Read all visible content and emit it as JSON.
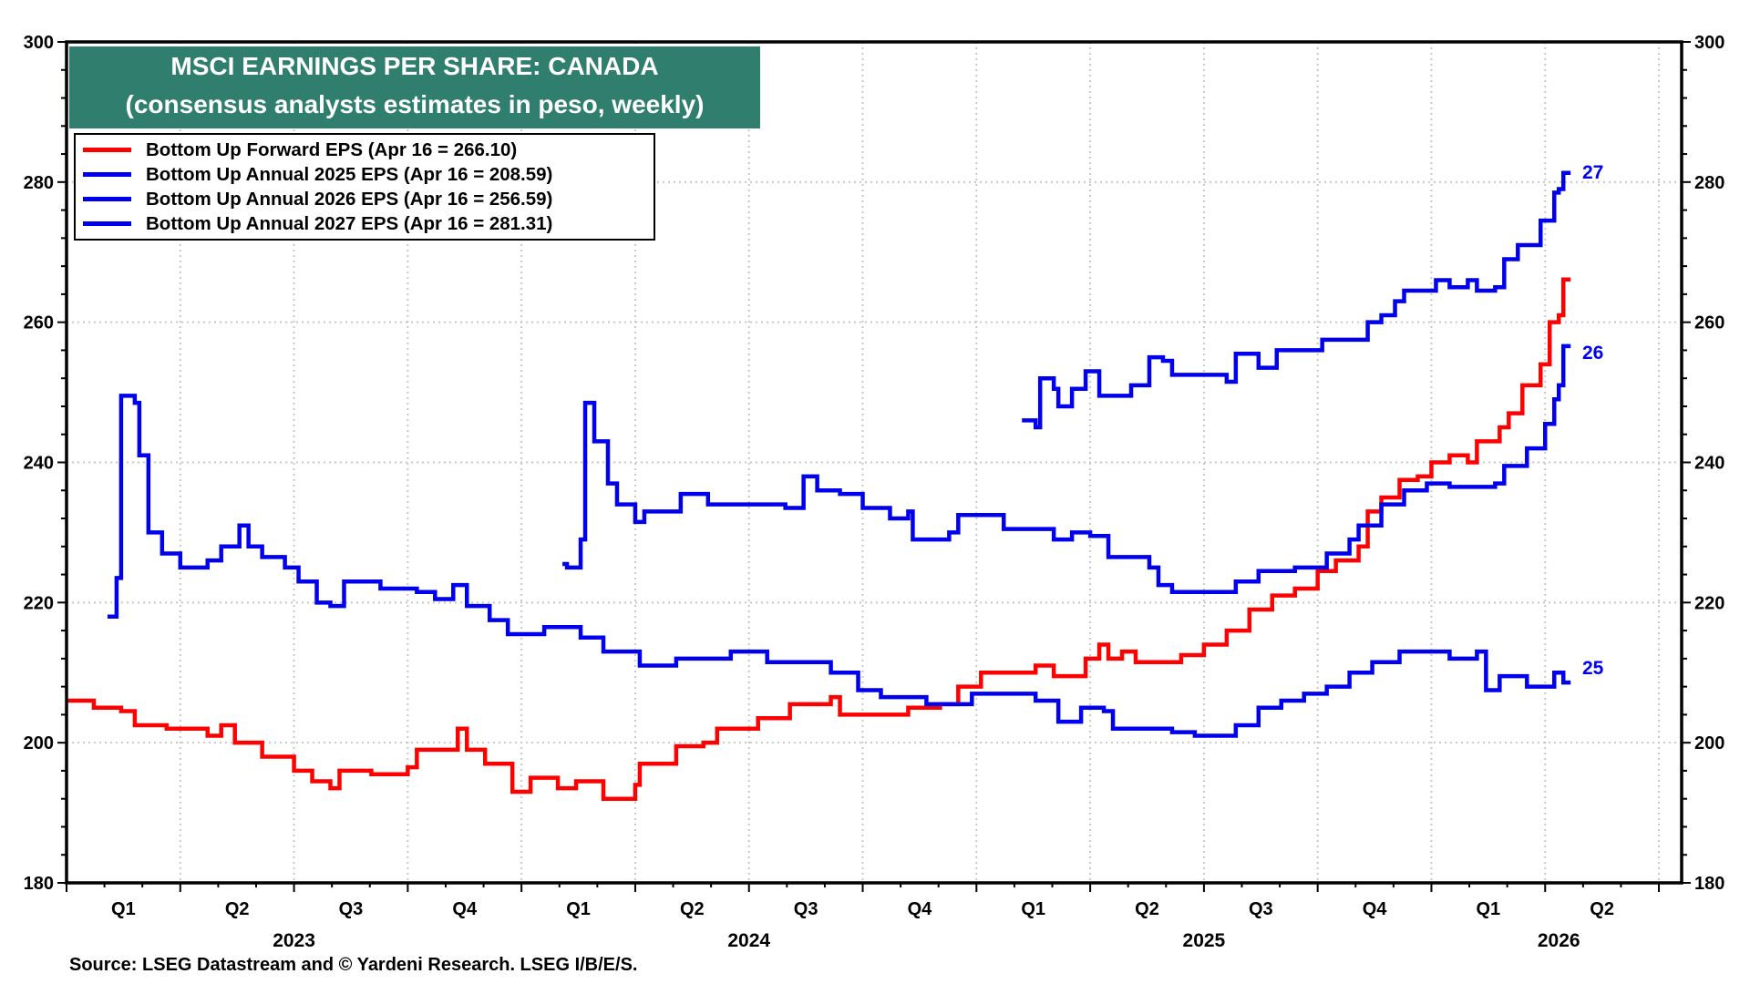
{
  "chart_data": {
    "type": "line",
    "title": "MSCI EARNINGS PER SHARE: CANADA",
    "subtitle": "(consensus analysts estimates in peso, weekly)",
    "source": "Source: LSEG Datastream and © Yardeni Research. LSEG I/B/E/S.",
    "ylim": [
      180,
      300
    ],
    "yticks": [
      180,
      200,
      220,
      240,
      260,
      280,
      300
    ],
    "xlim": [
      2023.0,
      2026.55
    ],
    "x_quarter_labels": [
      "Q1",
      "Q2",
      "Q3",
      "Q4"
    ],
    "x_year_labels": [
      "2023",
      "2024",
      "2025",
      "2026"
    ],
    "grid": true,
    "legend_position": "top-left",
    "step": true,
    "series": [
      {
        "name": "Bottom Up Forward EPS (Apr 16 = 266.10)",
        "color": "#ff0000",
        "end_label": "",
        "x": [
          2023.0,
          2023.06,
          2023.12,
          2023.15,
          2023.22,
          2023.31,
          2023.34,
          2023.37,
          2023.43,
          2023.5,
          2023.54,
          2023.58,
          2023.6,
          2023.67,
          2023.75,
          2023.77,
          2023.82,
          2023.86,
          2023.88,
          2023.92,
          2023.98,
          2024.02,
          2024.05,
          2024.08,
          2024.12,
          2024.18,
          2024.25,
          2024.26,
          2024.34,
          2024.4,
          2024.43,
          2024.48,
          2024.52,
          2024.59,
          2024.68,
          2024.7,
          2024.8,
          2024.85,
          2024.92,
          2024.96,
          2025.01,
          2025.1,
          2025.13,
          2025.17,
          2025.24,
          2025.27,
          2025.29,
          2025.32,
          2025.35,
          2025.45,
          2025.5,
          2025.55,
          2025.6,
          2025.65,
          2025.7,
          2025.75,
          2025.79,
          2025.84,
          2025.86,
          2025.89,
          2025.93,
          2025.97,
          2026.0,
          2026.04,
          2026.08,
          2026.1,
          2026.15,
          2026.17,
          2026.2,
          2026.24,
          2026.26,
          2026.28,
          2026.29
        ],
        "y": [
          206,
          205,
          204.5,
          202.5,
          202,
          201,
          202.5,
          200,
          198,
          196,
          194.5,
          193.5,
          196,
          195.5,
          196.5,
          199,
          199,
          202,
          199,
          197,
          193,
          195,
          195,
          193.5,
          194.5,
          192,
          194,
          197,
          199.5,
          200,
          202,
          202,
          203.5,
          205.5,
          206.5,
          204,
          204,
          205,
          205.5,
          208,
          210,
          210,
          211,
          209.5,
          212,
          214,
          212,
          213,
          211.5,
          212.5,
          214,
          216,
          219,
          221,
          222,
          224.5,
          226,
          228,
          233,
          235,
          237.5,
          238,
          240,
          241,
          240,
          243,
          245,
          247,
          251,
          254,
          260,
          261,
          266.1
        ]
      },
      {
        "name": "Bottom Up Annual 2025 EPS (Apr 16 = 208.59)",
        "color": "#0000ee",
        "end_label": "25",
        "x": [
          2023.09,
          2023.11,
          2023.12,
          2023.15,
          2023.16,
          2023.18,
          2023.21,
          2023.25,
          2023.31,
          2023.34,
          2023.38,
          2023.4,
          2023.43,
          2023.48,
          2023.51,
          2023.55,
          2023.58,
          2023.61,
          2023.69,
          2023.77,
          2023.81,
          2023.85,
          2023.88,
          2023.93,
          2023.97,
          2024.05,
          2024.13,
          2024.18,
          2024.26,
          2024.34,
          2024.46,
          2024.54,
          2024.64,
          2024.68,
          2024.74,
          2024.79,
          2024.89,
          2024.99,
          2025.13,
          2025.18,
          2025.23,
          2025.28,
          2025.3,
          2025.43,
          2025.48,
          2025.57,
          2025.62,
          2025.67,
          2025.72,
          2025.77,
          2025.82,
          2025.87,
          2025.93,
          2026.04,
          2026.1,
          2026.12,
          2026.15,
          2026.19,
          2026.21,
          2026.27,
          2026.29
        ],
        "y": [
          218,
          223.5,
          249.5,
          248.5,
          241,
          230,
          227,
          225,
          226,
          228,
          231,
          228,
          226.5,
          225,
          223,
          220,
          219.5,
          223,
          222,
          221.5,
          220.5,
          222.5,
          219.5,
          217.5,
          215.5,
          216.5,
          215,
          213,
          211,
          212,
          213,
          211.5,
          211.5,
          210,
          207.5,
          206.5,
          205.5,
          207,
          206,
          203,
          205,
          204.5,
          202,
          201.5,
          201,
          202.5,
          205,
          206,
          207,
          208,
          210,
          211.5,
          213,
          212,
          213,
          207.5,
          209.5,
          209.5,
          208,
          210,
          208.59
        ]
      },
      {
        "name": "Bottom Up Annual 2026 EPS (Apr 16 = 256.59)",
        "color": "#0000ee",
        "end_label": "26",
        "x": [
          2024.09,
          2024.1,
          2024.13,
          2024.14,
          2024.16,
          2024.19,
          2024.21,
          2024.25,
          2024.27,
          2024.35,
          2024.41,
          2024.58,
          2024.62,
          2024.65,
          2024.7,
          2024.75,
          2024.81,
          2024.85,
          2024.86,
          2024.94,
          2024.96,
          2025.06,
          2025.17,
          2025.21,
          2025.25,
          2025.29,
          2025.38,
          2025.4,
          2025.43,
          2025.52,
          2025.57,
          2025.62,
          2025.7,
          2025.77,
          2025.82,
          2025.84,
          2025.89,
          2025.94,
          2025.99,
          2026.04,
          2026.14,
          2026.16,
          2026.21,
          2026.25,
          2026.27,
          2026.28,
          2026.29
        ],
        "y": [
          225.5,
          225,
          229,
          248.5,
          243,
          237,
          234,
          231.5,
          233,
          235.5,
          234,
          233.5,
          238,
          236,
          235.5,
          233.5,
          232,
          233,
          229,
          230,
          232.5,
          230.5,
          229,
          230,
          229.5,
          226.5,
          225,
          222.5,
          221.5,
          221.5,
          223,
          224.5,
          225,
          227,
          229,
          231,
          234,
          236,
          237,
          236.5,
          237,
          239.5,
          242,
          245.5,
          249,
          251,
          256.59
        ]
      },
      {
        "name": "Bottom Up Annual 2027 EPS (Apr 16 = 281.31)",
        "color": "#0000ee",
        "end_label": "27",
        "x": [
          2025.1,
          2025.13,
          2025.14,
          2025.17,
          2025.18,
          2025.21,
          2025.24,
          2025.27,
          2025.34,
          2025.38,
          2025.41,
          2025.43,
          2025.52,
          2025.55,
          2025.57,
          2025.62,
          2025.66,
          2025.76,
          2025.83,
          2025.86,
          2025.89,
          2025.92,
          2025.94,
          2026.01,
          2026.04,
          2026.08,
          2026.1,
          2026.14,
          2026.16,
          2026.19,
          2026.24,
          2026.27,
          2026.28,
          2026.29
        ],
        "y": [
          246,
          245,
          252,
          250.5,
          248,
          250.5,
          253,
          249.5,
          251,
          255,
          254.5,
          252.5,
          252.5,
          251.5,
          255.5,
          253.5,
          256,
          257.5,
          257.5,
          260,
          261,
          263,
          264.5,
          266,
          265,
          266,
          264.5,
          265,
          269,
          271,
          274.5,
          278.5,
          279,
          281.31
        ]
      }
    ]
  }
}
